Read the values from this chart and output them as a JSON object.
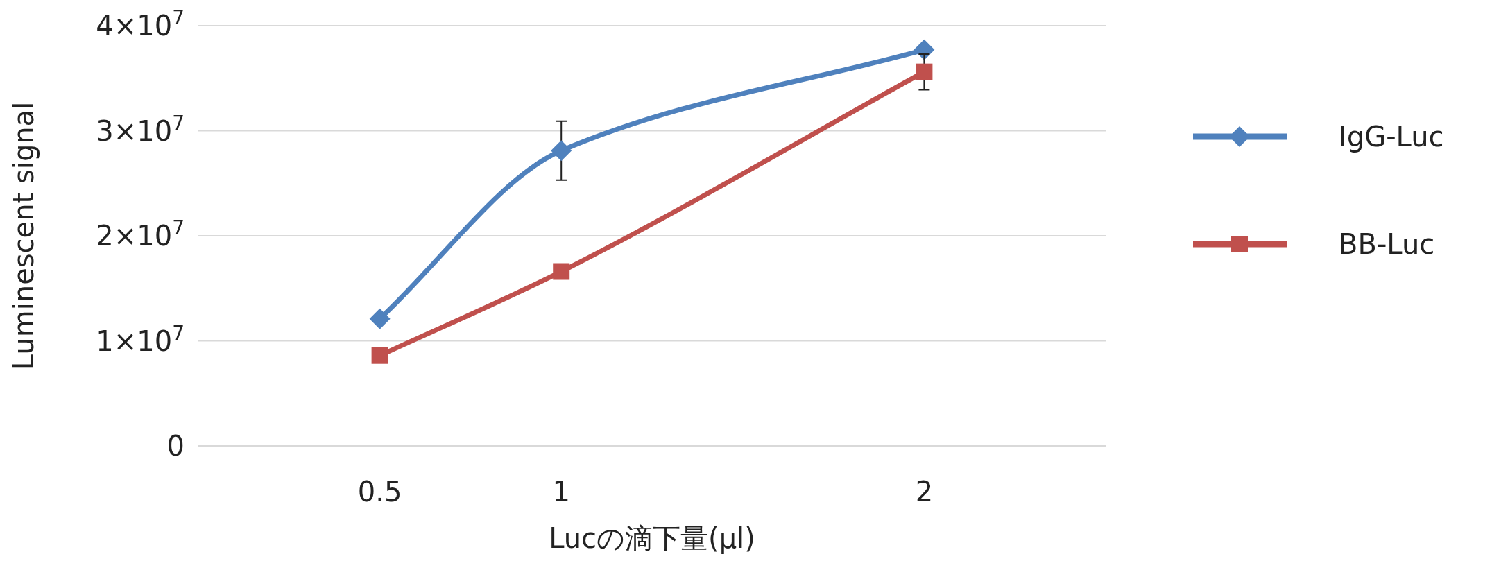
{
  "chart_data": {
    "type": "line",
    "xlabel": "Lucの滴下量(μl)",
    "ylabel": "Luminescent signal",
    "xlim": [
      0,
      2.5
    ],
    "xticks": [
      0.5,
      1,
      2
    ],
    "ylim": [
      0,
      40000000
    ],
    "yticks": [
      0,
      {
        "value": 10000000,
        "label": "1×10$^{7}$"
      },
      {
        "value": 20000000,
        "label": "2×10$^{7}$"
      },
      {
        "value": 30000000,
        "label": "3×10$^{7}$"
      },
      {
        "value": 40000000,
        "label": "4×10$^{7}$"
      }
    ],
    "grid": "y",
    "legend": "right",
    "x": [
      0.5,
      1,
      2
    ],
    "series": [
      {
        "name": "IgG-Luc",
        "color": "#4f81bd",
        "marker": "diamond",
        "values": [
          12100000,
          28100000,
          37700000
        ],
        "errors": [
          null,
          2800000,
          null
        ]
      },
      {
        "name": "BB-Luc",
        "color": "#c0504d",
        "marker": "square",
        "values": [
          8600000,
          16600000,
          35600000
        ],
        "errors": [
          null,
          null,
          1700000
        ]
      }
    ]
  }
}
